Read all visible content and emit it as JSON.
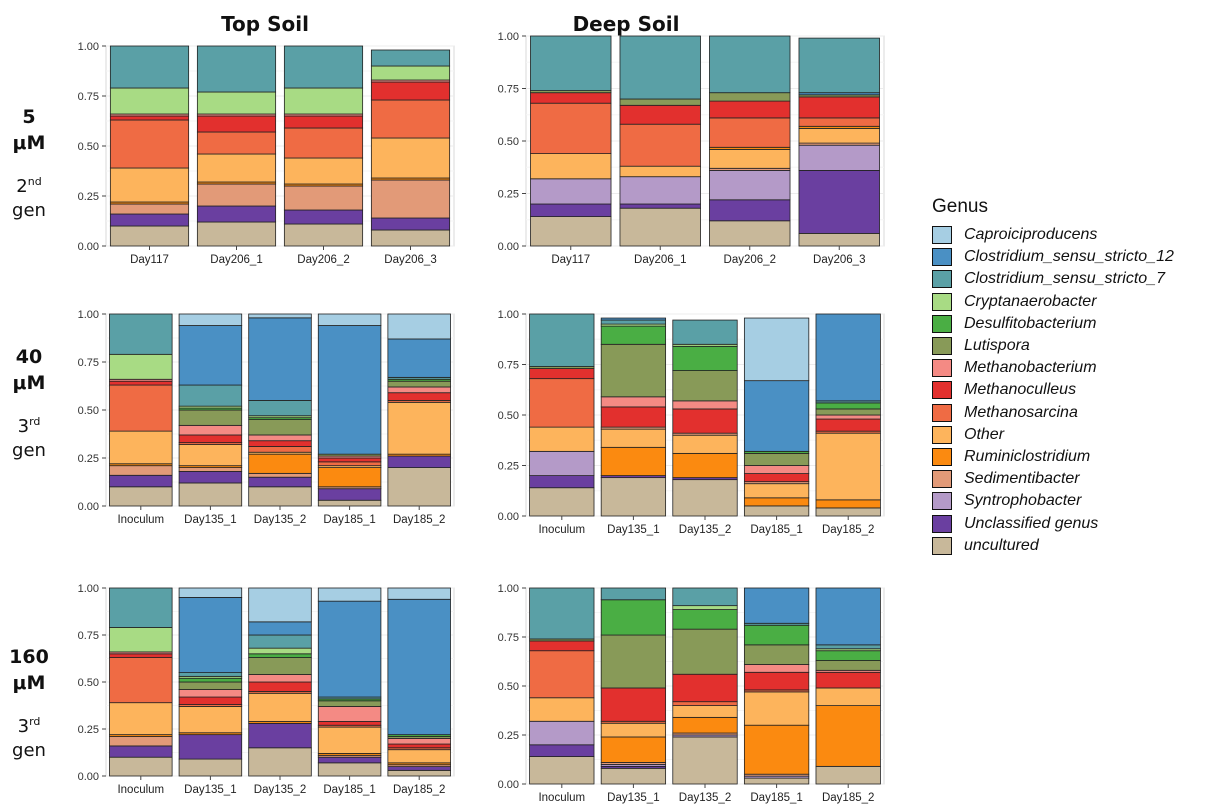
{
  "columns": {
    "top": "Top Soil",
    "deep": "Deep Soil"
  },
  "rows": [
    {
      "conc": [
        "5",
        "μM"
      ],
      "gen": "2",
      "gen_sup": "nd",
      "gen_word": "gen"
    },
    {
      "conc": [
        "40",
        "μM"
      ],
      "gen": "3",
      "gen_sup": "rd",
      "gen_word": "gen"
    },
    {
      "conc": [
        "160",
        "μM"
      ],
      "gen": "3",
      "gen_sup": "rd",
      "gen_word": "gen"
    }
  ],
  "legend": {
    "title": "Genus",
    "items": [
      {
        "name": "Caproiciproducens",
        "color": "#a6cee3"
      },
      {
        "name": "Clostridium_sensu_stricto_12",
        "color": "#4a90c4"
      },
      {
        "name": "Clostridium_sensu_stricto_7",
        "color": "#5aa0a6"
      },
      {
        "name": "Cryptanaerobacter",
        "color": "#a8db84"
      },
      {
        "name": "Desulfitobacterium",
        "color": "#4aae44"
      },
      {
        "name": "Lutispora",
        "color": "#889a58"
      },
      {
        "name": "Methanobacterium",
        "color": "#f48a84"
      },
      {
        "name": "Methanoculleus",
        "color": "#e2302e"
      },
      {
        "name": "Methanosarcina",
        "color": "#ef6b44"
      },
      {
        "name": "Other",
        "color": "#fdb45c"
      },
      {
        "name": "Ruminiclostridium",
        "color": "#fb8a10"
      },
      {
        "name": "Sedimentibacter",
        "color": "#e29a78"
      },
      {
        "name": "Syntrophobacter",
        "color": "#b49ac8"
      },
      {
        "name": "Unclassified genus",
        "color": "#6a3fa0"
      },
      {
        "name": "uncultured",
        "color": "#c8b89a"
      }
    ]
  },
  "chart_data": [
    {
      "type": "bar",
      "stacked": true,
      "panel": "Top Soil / 5 μM",
      "ylim": [
        0,
        1
      ],
      "yticks": [
        "0.00",
        "0.25",
        "0.50",
        "0.75",
        "1.00"
      ],
      "categories": [
        "Day117",
        "Day206_1",
        "Day206_2",
        "Day206_3"
      ],
      "series": [
        {
          "name": "uncultured",
          "values": [
            0.1,
            0.12,
            0.11,
            0.08
          ]
        },
        {
          "name": "Unclassified genus",
          "values": [
            0.06,
            0.08,
            0.07,
            0.06
          ]
        },
        {
          "name": "Sedimentibacter",
          "values": [
            0.05,
            0.11,
            0.12,
            0.19
          ]
        },
        {
          "name": "Ruminiclostridium",
          "values": [
            0.01,
            0.01,
            0.01,
            0.01
          ]
        },
        {
          "name": "Other",
          "values": [
            0.17,
            0.14,
            0.13,
            0.2
          ]
        },
        {
          "name": "Methanosarcina",
          "values": [
            0.24,
            0.11,
            0.15,
            0.19
          ]
        },
        {
          "name": "Methanoculleus",
          "values": [
            0.02,
            0.08,
            0.06,
            0.09
          ]
        },
        {
          "name": "Methanobacterium",
          "values": [
            0.01,
            0.01,
            0.01,
            0.01
          ]
        },
        {
          "name": "Cryptanaerobacter",
          "values": [
            0.13,
            0.11,
            0.13,
            0.07
          ]
        },
        {
          "name": "Clostridium_sensu_stricto_7",
          "values": [
            0.21,
            0.23,
            0.21,
            0.08
          ]
        }
      ]
    },
    {
      "type": "bar",
      "stacked": true,
      "panel": "Deep Soil / 5 μM",
      "ylim": [
        0,
        1
      ],
      "yticks": [
        "0.00",
        "0.25",
        "0.50",
        "0.75",
        "1.00"
      ],
      "categories": [
        "Day117",
        "Day206_1",
        "Day206_2",
        "Day206_3"
      ],
      "series": [
        {
          "name": "uncultured",
          "values": [
            0.14,
            0.18,
            0.12,
            0.06
          ]
        },
        {
          "name": "Unclassified genus",
          "values": [
            0.06,
            0.02,
            0.1,
            0.3
          ]
        },
        {
          "name": "Syntrophobacter",
          "values": [
            0.12,
            0.13,
            0.14,
            0.12
          ]
        },
        {
          "name": "Sedimentibacter",
          "values": [
            0.0,
            0.0,
            0.01,
            0.01
          ]
        },
        {
          "name": "Other",
          "values": [
            0.12,
            0.05,
            0.09,
            0.07
          ]
        },
        {
          "name": "Ruminiclostridium",
          "values": [
            0.0,
            0.0,
            0.01,
            0.01
          ]
        },
        {
          "name": "Methanosarcina",
          "values": [
            0.24,
            0.2,
            0.14,
            0.04
          ]
        },
        {
          "name": "Methanoculleus",
          "values": [
            0.05,
            0.09,
            0.08,
            0.1
          ]
        },
        {
          "name": "Lutispora",
          "values": [
            0.01,
            0.03,
            0.04,
            0.01
          ]
        },
        {
          "name": "Clostridium_sensu_stricto_12",
          "values": [
            0.0,
            0.0,
            0.0,
            0.01
          ]
        },
        {
          "name": "Clostridium_sensu_stricto_7",
          "values": [
            0.26,
            0.3,
            0.27,
            0.26
          ]
        }
      ]
    },
    {
      "type": "bar",
      "stacked": true,
      "panel": "Top Soil / 40 μM",
      "ylim": [
        0,
        1
      ],
      "yticks": [
        "0.00",
        "0.25",
        "0.50",
        "0.75",
        "1.00"
      ],
      "categories": [
        "Inoculum",
        "Day135_1",
        "Day135_2",
        "Day185_1",
        "Day185_2"
      ],
      "series": [
        {
          "name": "uncultured",
          "values": [
            0.1,
            0.12,
            0.1,
            0.03,
            0.2
          ]
        },
        {
          "name": "Unclassified genus",
          "values": [
            0.06,
            0.06,
            0.05,
            0.06,
            0.06
          ]
        },
        {
          "name": "Sedimentibacter",
          "values": [
            0.05,
            0.02,
            0.02,
            0.01,
            0.0
          ]
        },
        {
          "name": "Ruminiclostridium",
          "values": [
            0.01,
            0.01,
            0.1,
            0.1,
            0.01
          ]
        },
        {
          "name": "Other",
          "values": [
            0.17,
            0.11,
            0.01,
            0.01,
            0.27
          ]
        },
        {
          "name": "Methanosarcina",
          "values": [
            0.24,
            0.01,
            0.03,
            0.02,
            0.01
          ]
        },
        {
          "name": "Methanoculleus",
          "values": [
            0.02,
            0.04,
            0.03,
            0.02,
            0.04
          ]
        },
        {
          "name": "Methanobacterium",
          "values": [
            0.01,
            0.05,
            0.03,
            0.01,
            0.03
          ]
        },
        {
          "name": "Lutispora",
          "values": [
            0.0,
            0.08,
            0.08,
            0.01,
            0.03
          ]
        },
        {
          "name": "Desulfitobacterium",
          "values": [
            0.0,
            0.01,
            0.01,
            0.0,
            0.01
          ]
        },
        {
          "name": "Cryptanaerobacter",
          "values": [
            0.13,
            0.01,
            0.01,
            0.0,
            0.0
          ]
        },
        {
          "name": "Clostridium_sensu_stricto_7",
          "values": [
            0.21,
            0.11,
            0.08,
            0.0,
            0.01
          ]
        },
        {
          "name": "Clostridium_sensu_stricto_12",
          "values": [
            0.0,
            0.31,
            0.43,
            0.67,
            0.2
          ]
        },
        {
          "name": "Caproiciproducens",
          "values": [
            0.0,
            0.06,
            0.02,
            0.06,
            0.13
          ]
        }
      ]
    },
    {
      "type": "bar",
      "stacked": true,
      "panel": "Deep Soil / 40 μM",
      "ylim": [
        0,
        1
      ],
      "yticks": [
        "0.00",
        "0.25",
        "0.50",
        "0.75",
        "1.00"
      ],
      "categories": [
        "Inoculum",
        "Day135_1",
        "Day135_2",
        "Day185_1",
        "Day185_2"
      ],
      "series": [
        {
          "name": "uncultured",
          "values": [
            0.14,
            0.19,
            0.18,
            0.05,
            0.04
          ]
        },
        {
          "name": "Unclassified genus",
          "values": [
            0.06,
            0.01,
            0.01,
            0.0,
            0.0
          ]
        },
        {
          "name": "Syntrophobacter",
          "values": [
            0.12,
            0.0,
            0.0,
            0.0,
            0.0
          ]
        },
        {
          "name": "Ruminiclostridium",
          "values": [
            0.0,
            0.14,
            0.12,
            0.04,
            0.04
          ]
        },
        {
          "name": "Other",
          "values": [
            0.12,
            0.09,
            0.09,
            0.07,
            0.33
          ]
        },
        {
          "name": "Sedimentibacter",
          "values": [
            0.0,
            0.01,
            0.01,
            0.01,
            0.0
          ]
        },
        {
          "name": "Methanosarcina",
          "values": [
            0.24,
            0.0,
            0.0,
            0.0,
            0.01
          ]
        },
        {
          "name": "Methanoculleus",
          "values": [
            0.05,
            0.1,
            0.12,
            0.04,
            0.06
          ]
        },
        {
          "name": "Methanobacterium",
          "values": [
            0.0,
            0.05,
            0.04,
            0.04,
            0.02
          ]
        },
        {
          "name": "Lutispora",
          "values": [
            0.01,
            0.26,
            0.15,
            0.06,
            0.03
          ]
        },
        {
          "name": "Desulfitobacterium",
          "values": [
            0.0,
            0.09,
            0.12,
            0.01,
            0.03
          ]
        },
        {
          "name": "Cryptanaerobacter",
          "values": [
            0.0,
            0.01,
            0.01,
            0.0,
            0.0
          ]
        },
        {
          "name": "Clostridium_sensu_stricto_7",
          "values": [
            0.26,
            0.02,
            0.12,
            0.0,
            0.01
          ]
        },
        {
          "name": "Clostridium_sensu_stricto_12",
          "values": [
            0.0,
            0.01,
            0.0,
            0.35,
            0.43
          ]
        },
        {
          "name": "Caproiciproducens",
          "values": [
            0.0,
            0.0,
            0.0,
            0.31,
            0.0
          ]
        }
      ]
    },
    {
      "type": "bar",
      "stacked": true,
      "panel": "Top Soil / 160 μM",
      "ylim": [
        0,
        1
      ],
      "yticks": [
        "0.00",
        "0.25",
        "0.50",
        "0.75",
        "1.00"
      ],
      "categories": [
        "Inoculum",
        "Day135_1",
        "Day135_2",
        "Day185_1",
        "Day185_2"
      ],
      "series": [
        {
          "name": "uncultured",
          "values": [
            0.1,
            0.09,
            0.15,
            0.07,
            0.03
          ]
        },
        {
          "name": "Unclassified genus",
          "values": [
            0.06,
            0.13,
            0.13,
            0.03,
            0.02
          ]
        },
        {
          "name": "Sedimentibacter",
          "values": [
            0.05,
            0.0,
            0.0,
            0.01,
            0.01
          ]
        },
        {
          "name": "Ruminiclostridium",
          "values": [
            0.01,
            0.01,
            0.01,
            0.01,
            0.01
          ]
        },
        {
          "name": "Other",
          "values": [
            0.17,
            0.14,
            0.15,
            0.14,
            0.07
          ]
        },
        {
          "name": "Methanosarcina",
          "values": [
            0.24,
            0.01,
            0.01,
            0.01,
            0.01
          ]
        },
        {
          "name": "Methanoculleus",
          "values": [
            0.02,
            0.04,
            0.05,
            0.02,
            0.02
          ]
        },
        {
          "name": "Methanobacterium",
          "values": [
            0.01,
            0.04,
            0.04,
            0.08,
            0.03
          ]
        },
        {
          "name": "Lutispora",
          "values": [
            0.0,
            0.04,
            0.09,
            0.03,
            0.01
          ]
        },
        {
          "name": "Desulfitobacterium",
          "values": [
            0.0,
            0.02,
            0.02,
            0.01,
            0.01
          ]
        },
        {
          "name": "Cryptanaerobacter",
          "values": [
            0.13,
            0.01,
            0.03,
            0.0,
            0.0
          ]
        },
        {
          "name": "Clostridium_sensu_stricto_7",
          "values": [
            0.21,
            0.02,
            0.07,
            0.01,
            0.0
          ]
        },
        {
          "name": "Clostridium_sensu_stricto_12",
          "values": [
            0.0,
            0.4,
            0.07,
            0.51,
            0.72
          ]
        },
        {
          "name": "Caproiciproducens",
          "values": [
            0.0,
            0.05,
            0.18,
            0.07,
            0.06
          ]
        }
      ]
    },
    {
      "type": "bar",
      "stacked": true,
      "panel": "Deep Soil / 160 μM",
      "ylim": [
        0,
        1
      ],
      "yticks": [
        "0.00",
        "0.25",
        "0.50",
        "0.75",
        "1.00"
      ],
      "categories": [
        "Inoculum",
        "Day135_1",
        "Day135_2",
        "Day185_1",
        "Day185_2"
      ],
      "series": [
        {
          "name": "uncultured",
          "values": [
            0.14,
            0.08,
            0.24,
            0.03,
            0.09
          ]
        },
        {
          "name": "Unclassified genus",
          "values": [
            0.06,
            0.01,
            0.0,
            0.0,
            0.0
          ]
        },
        {
          "name": "Syntrophobacter",
          "values": [
            0.12,
            0.01,
            0.01,
            0.01,
            0.0
          ]
        },
        {
          "name": "Sedimentibacter",
          "values": [
            0.0,
            0.01,
            0.01,
            0.01,
            0.0
          ]
        },
        {
          "name": "Ruminiclostridium",
          "values": [
            0.0,
            0.13,
            0.08,
            0.25,
            0.31
          ]
        },
        {
          "name": "Other",
          "values": [
            0.12,
            0.07,
            0.06,
            0.17,
            0.09
          ]
        },
        {
          "name": "Methanosarcina",
          "values": [
            0.24,
            0.01,
            0.02,
            0.01,
            0.0
          ]
        },
        {
          "name": "Methanoculleus",
          "values": [
            0.05,
            0.17,
            0.14,
            0.09,
            0.08
          ]
        },
        {
          "name": "Methanobacterium",
          "values": [
            0.0,
            0.0,
            0.0,
            0.04,
            0.01
          ]
        },
        {
          "name": "Lutispora",
          "values": [
            0.01,
            0.27,
            0.23,
            0.1,
            0.05
          ]
        },
        {
          "name": "Desulfitobacterium",
          "values": [
            0.0,
            0.18,
            0.1,
            0.1,
            0.05
          ]
        },
        {
          "name": "Cryptanaerobacter",
          "values": [
            0.0,
            0.0,
            0.02,
            0.0,
            0.01
          ]
        },
        {
          "name": "Clostridium_sensu_stricto_7",
          "values": [
            0.26,
            0.06,
            0.09,
            0.01,
            0.02
          ]
        },
        {
          "name": "Clostridium_sensu_stricto_12",
          "values": [
            0.0,
            0.0,
            0.0,
            0.18,
            0.29
          ]
        }
      ]
    }
  ]
}
